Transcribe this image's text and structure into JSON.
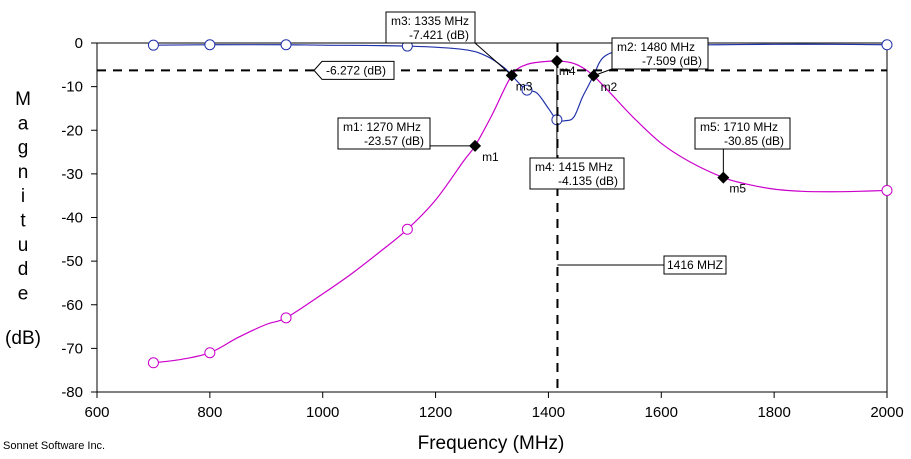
{
  "chart_data": {
    "type": "line",
    "xlabel": "Frequency (MHz)",
    "ylabel_letters": [
      "M",
      "a",
      "g",
      "n",
      "i",
      "t",
      "u",
      "d",
      "e"
    ],
    "ylabel_unit": "(dB)",
    "xlim": [
      600,
      2000
    ],
    "ylim": [
      -80,
      0
    ],
    "xticks": [
      600,
      800,
      1000,
      1200,
      1400,
      1600,
      1800,
      2000
    ],
    "yticks": [
      0,
      -10,
      -20,
      -30,
      -40,
      -50,
      -60,
      -70,
      -80
    ],
    "grid": false,
    "credit": "Sonnet Software Inc.",
    "series": [
      {
        "color": "#cc00cc",
        "x": [
          700,
          750,
          800,
          850,
          900,
          935,
          1000,
          1050,
          1100,
          1150,
          1200,
          1250,
          1270,
          1300,
          1335,
          1360,
          1390,
          1415,
          1440,
          1460,
          1480,
          1510,
          1550,
          1600,
          1650,
          1710,
          1750,
          1800,
          1850,
          1900,
          1950,
          2000
        ],
        "y": [
          -73.3,
          -72.5,
          -71.0,
          -67.5,
          -64.5,
          -63.0,
          -57.5,
          -53.0,
          -48.0,
          -42.7,
          -36.0,
          -27.0,
          -23.57,
          -16.5,
          -7.421,
          -5.0,
          -4.3,
          -4.135,
          -4.5,
          -5.6,
          -7.509,
          -11.5,
          -17.0,
          -23.0,
          -27.2,
          -30.85,
          -32.3,
          -33.5,
          -34.0,
          -34.1,
          -34.0,
          -33.8
        ],
        "marked_points": [
          [
            700,
            -73.3
          ],
          [
            800,
            -71.0
          ],
          [
            935,
            -63.0
          ],
          [
            1150,
            -42.7
          ],
          [
            2000,
            -33.8
          ]
        ]
      },
      {
        "color": "#2233aa",
        "x": [
          700,
          800,
          935,
          1000,
          1150,
          1250,
          1290,
          1320,
          1335,
          1350,
          1362,
          1380,
          1400,
          1415,
          1430,
          1445,
          1460,
          1470,
          1480,
          1500,
          1550,
          1600,
          1700,
          1800,
          1900,
          2000
        ],
        "y": [
          -0.5,
          -0.4,
          -0.4,
          -0.5,
          -0.7,
          -1.5,
          -3.0,
          -5.5,
          -7.421,
          -9.5,
          -10.8,
          -11.5,
          -15.0,
          -17.6,
          -17.8,
          -17.0,
          -12.5,
          -10.0,
          -7.509,
          -3.0,
          -1.0,
          -0.5,
          -0.4,
          -0.3,
          -0.3,
          -0.4
        ],
        "marked_points": [
          [
            700,
            -0.5
          ],
          [
            800,
            -0.4
          ],
          [
            935,
            -0.4
          ],
          [
            1150,
            -0.7
          ],
          [
            1362,
            -10.8
          ],
          [
            1415,
            -17.6
          ],
          [
            2000,
            -0.4
          ]
        ]
      }
    ],
    "markers": [
      {
        "id": "m1",
        "x": 1270,
        "y": -23.57,
        "freq_text": "1270 MHz",
        "val_text": "-23.57  (dB)"
      },
      {
        "id": "m2",
        "x": 1480,
        "y": -7.509,
        "freq_text": "1480 MHz",
        "val_text": "-7.509  (dB)"
      },
      {
        "id": "m3",
        "x": 1335,
        "y": -7.421,
        "freq_text": "1335 MHz",
        "val_text": "-7.421  (dB)"
      },
      {
        "id": "m4",
        "x": 1415,
        "y": -4.135,
        "freq_text": "1415 MHz",
        "val_text": "-4.135  (dB)"
      },
      {
        "id": "m5",
        "x": 1710,
        "y": -30.85,
        "freq_text": "1710 MHz",
        "val_text": "-30.85  (dB)"
      }
    ],
    "hline": {
      "y": -6.272,
      "label": "-6.272  (dB)"
    },
    "vline": {
      "x": 1416,
      "label": "1416 MHZ"
    }
  }
}
